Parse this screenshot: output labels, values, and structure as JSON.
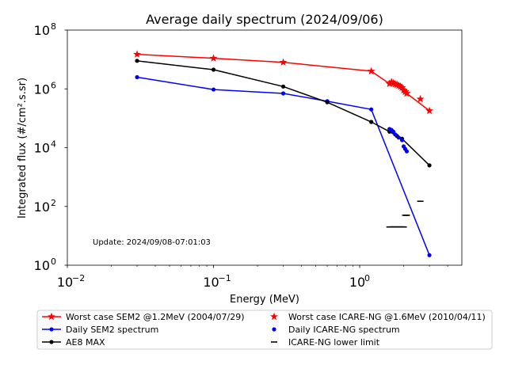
{
  "chart_data": {
    "type": "line",
    "title": "Average daily spectrum (2024/09/06)",
    "xlabel": "Energy (MeV)",
    "ylabel": "Integrated flux (#/cm².s.sr)",
    "xscale": "log",
    "yscale": "log",
    "xlim": [
      0.01,
      5
    ],
    "ylim": [
      1,
      100000000
    ],
    "xticks": [
      {
        "value": 0.01,
        "base": "10",
        "exp": "−2"
      },
      {
        "value": 0.1,
        "base": "10",
        "exp": "−1"
      },
      {
        "value": 1,
        "base": "10",
        "exp": "0"
      }
    ],
    "yticks": [
      {
        "value": 1,
        "base": "10",
        "exp": "0"
      },
      {
        "value": 100,
        "base": "10",
        "exp": "2"
      },
      {
        "value": 10000,
        "base": "10",
        "exp": "4"
      },
      {
        "value": 1000000,
        "base": "10",
        "exp": "6"
      },
      {
        "value": 100000000,
        "base": "10",
        "exp": "8"
      }
    ],
    "annotation": "Update: 2024/09/08-07:01:03",
    "legend_position": "below",
    "series": [
      {
        "name": "Worst case SEM2 @1.2MeV (2004/07/29)",
        "color": "#ff0000",
        "marker": "star",
        "style": "line",
        "x": [
          0.03,
          0.1,
          0.3,
          1.2,
          1.6,
          1.65,
          1.7,
          1.75,
          1.8,
          1.85,
          1.9,
          1.95,
          2.0,
          2.05,
          2.1,
          3.0
        ],
        "y": [
          15000000,
          11000000,
          8000000,
          4000000,
          1500000,
          1700000,
          1550000,
          1450000,
          1400000,
          1300000,
          1200000,
          1100000,
          900000,
          800000,
          700000,
          180000
        ]
      },
      {
        "name": "Daily SEM2 spectrum",
        "color": "#0000ff",
        "marker": "dot",
        "style": "line",
        "x": [
          0.03,
          0.1,
          0.3,
          0.6,
          1.2,
          3.0
        ],
        "y": [
          2500000,
          950000,
          700000,
          380000,
          200000,
          2.2
        ]
      },
      {
        "name": "AE8 MAX",
        "color": "#000000",
        "marker": "dot",
        "style": "line",
        "x": [
          0.03,
          0.1,
          0.3,
          0.6,
          1.2,
          1.6,
          1.8,
          1.95,
          3.0
        ],
        "y": [
          9000000,
          4500000,
          1200000,
          350000,
          75000,
          35000,
          25000,
          20000,
          2500
        ]
      },
      {
        "name": "Worst case ICARE-NG @1.6MeV (2010/04/11)",
        "color": "#ff0000",
        "marker": "star",
        "style": "markers",
        "x": [
          1.6,
          1.65,
          1.7,
          1.75,
          1.8,
          1.85,
          1.9,
          1.95,
          2.0,
          2.05,
          2.1,
          2.6
        ],
        "y": [
          1500000,
          1700000,
          1550000,
          1450000,
          1400000,
          1300000,
          1200000,
          1100000,
          900000,
          800000,
          700000,
          450000
        ]
      },
      {
        "name": "Daily ICARE-NG spectrum",
        "color": "#0000ff",
        "marker": "dot",
        "style": "markers",
        "x": [
          1.6,
          1.65,
          1.7,
          1.75,
          1.85,
          1.95,
          2.0,
          2.05,
          2.1
        ],
        "y": [
          43000,
          40000,
          35000,
          28000,
          22000,
          18000,
          11000,
          9000,
          7500
        ]
      },
      {
        "name": "ICARE-NG lower limit",
        "color": "#000000",
        "marker": "hline",
        "style": "markers",
        "x": [
          1.6,
          1.65,
          1.7,
          1.75,
          1.8,
          1.85,
          1.9,
          1.95,
          2.0,
          2.05,
          2.1,
          2.6
        ],
        "y": [
          20,
          20,
          20,
          20,
          20,
          20,
          20,
          20,
          20,
          50,
          50,
          150
        ]
      }
    ]
  }
}
